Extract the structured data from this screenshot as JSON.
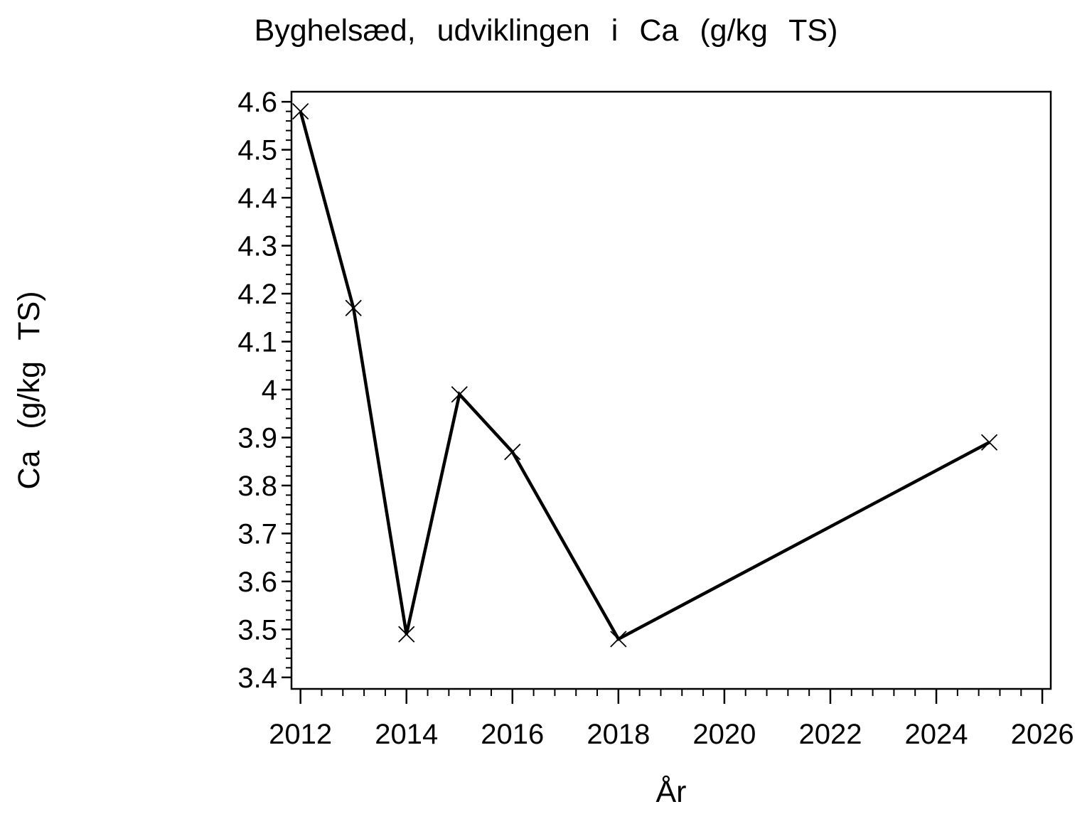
{
  "page": {
    "background_color": "#ffffff",
    "foreground_color": "#000000"
  },
  "chart_data": {
    "type": "line",
    "title": "Byghelsæd, udviklingen i Ca (g/kg TS)",
    "xlabel": "År",
    "ylabel": "Ca (g/kg TS)",
    "grid": false,
    "legend": false,
    "line_color": "#000000",
    "marker": "x",
    "series": [
      {
        "name": "Ca (g/kg TS)",
        "x": [
          2012,
          2013,
          2014,
          2015,
          2016,
          2018,
          2025
        ],
        "y": [
          4.58,
          4.17,
          3.49,
          3.99,
          3.87,
          3.48,
          3.89
        ]
      }
    ],
    "x_axis": {
      "min": 2011.83,
      "max": 2026.16,
      "major_ticks": [
        2012,
        2014,
        2016,
        2018,
        2020,
        2022,
        2024,
        2026
      ],
      "major_tick_labels": [
        "2012",
        "2014",
        "2016",
        "2018",
        "2020",
        "2022",
        "2024",
        "2026"
      ],
      "minor_step": 0.4
    },
    "y_axis": {
      "min": 3.376,
      "max": 4.621,
      "major_ticks": [
        3.4,
        3.5,
        3.6,
        3.7,
        3.8,
        3.9,
        4.0,
        4.1,
        4.2,
        4.3,
        4.4,
        4.5,
        4.6
      ],
      "major_tick_labels": [
        "3.4",
        "3.5",
        "3.6",
        "3.7",
        "3.8",
        "3.9",
        "4",
        "4.1",
        "4.2",
        "4.3",
        "4.4",
        "4.5",
        "4.6"
      ],
      "minor_step": 0.02
    }
  }
}
